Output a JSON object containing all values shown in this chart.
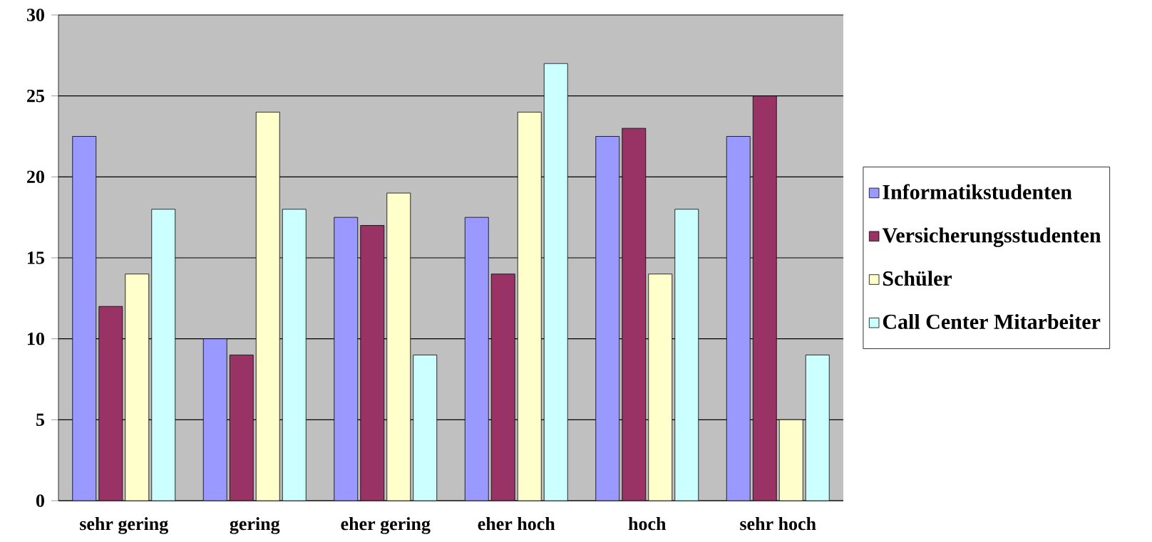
{
  "chart_data": {
    "type": "bar",
    "categories": [
      "sehr gering",
      "gering",
      "eher gering",
      "eher hoch",
      "hoch",
      "sehr hoch"
    ],
    "series": [
      {
        "name": "Informatikstudenten",
        "color": "#9999ff",
        "values": [
          22.5,
          10,
          17.5,
          17.5,
          22.5,
          22.5
        ]
      },
      {
        "name": "Versicherungsstudenten",
        "color": "#993366",
        "values": [
          12,
          9,
          17,
          14,
          23,
          25
        ]
      },
      {
        "name": "Schüler",
        "color": "#ffffcc",
        "values": [
          14,
          24,
          19,
          24,
          14,
          5
        ]
      },
      {
        "name": "Call Center Mitarbeiter",
        "color": "#ccffff",
        "values": [
          18,
          18,
          9,
          27,
          18,
          9
        ]
      }
    ],
    "ylim": [
      0,
      30
    ],
    "yticks": [
      0,
      5,
      10,
      15,
      20,
      25,
      30
    ],
    "grid": "y",
    "legend": "right"
  }
}
